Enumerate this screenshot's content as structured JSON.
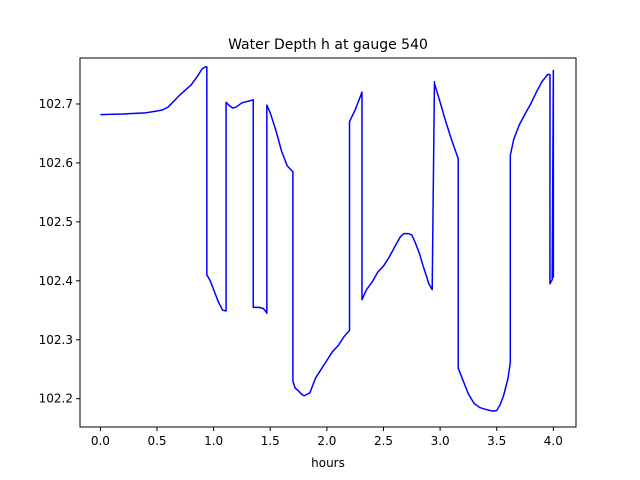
{
  "chart_data": {
    "type": "line",
    "title": "Water Depth h at gauge 540",
    "xlabel": "hours",
    "ylabel": "",
    "xlim": [
      -0.18,
      4.2
    ],
    "ylim": [
      102.152,
      102.778
    ],
    "xticks": [
      0.0,
      0.5,
      1.0,
      1.5,
      2.0,
      2.5,
      3.0,
      3.5,
      4.0
    ],
    "xtick_labels": [
      "0.0",
      "0.5",
      "1.0",
      "1.5",
      "2.0",
      "2.5",
      "3.0",
      "3.5",
      "4.0"
    ],
    "yticks": [
      102.2,
      102.3,
      102.4,
      102.5,
      102.6,
      102.7
    ],
    "ytick_labels": [
      "102.2",
      "102.3",
      "102.4",
      "102.5",
      "102.6",
      "102.7"
    ],
    "grid": false,
    "legend": "none",
    "series": [
      {
        "color": "#0000ff",
        "x": [
          0.0,
          0.2,
          0.4,
          0.5,
          0.55,
          0.6,
          0.65,
          0.7,
          0.8,
          0.85,
          0.9,
          0.93,
          0.94,
          0.94,
          0.97,
          1.0,
          1.04,
          1.08,
          1.11,
          1.11,
          1.14,
          1.17,
          1.2,
          1.25,
          1.35,
          1.35,
          1.4,
          1.44,
          1.46,
          1.47,
          1.47,
          1.5,
          1.55,
          1.6,
          1.65,
          1.7,
          1.7,
          1.72,
          1.74,
          1.78,
          1.8,
          1.85,
          1.9,
          2.0,
          2.05,
          2.1,
          2.15,
          2.2,
          2.2,
          2.25,
          2.31,
          2.31,
          2.35,
          2.4,
          2.45,
          2.5,
          2.55,
          2.6,
          2.65,
          2.68,
          2.7,
          2.72,
          2.75,
          2.78,
          2.8,
          2.82,
          2.85,
          2.88,
          2.9,
          2.93,
          2.95,
          2.95,
          3.0,
          3.05,
          3.1,
          3.16,
          3.16,
          3.2,
          3.25,
          3.3,
          3.35,
          3.4,
          3.44,
          3.47,
          3.5,
          3.53,
          3.56,
          3.6,
          3.62,
          3.62,
          3.65,
          3.7,
          3.75,
          3.8,
          3.85,
          3.9,
          3.95,
          3.97,
          3.97,
          3.99,
          4.0,
          4.0,
          4.0
        ],
        "y": [
          102.682,
          102.683,
          102.685,
          102.688,
          102.69,
          102.695,
          102.705,
          102.715,
          102.732,
          102.745,
          102.76,
          102.763,
          102.763,
          102.41,
          102.4,
          102.385,
          102.365,
          102.35,
          102.349,
          102.703,
          102.697,
          102.693,
          102.695,
          102.702,
          102.707,
          102.355,
          102.355,
          102.353,
          102.348,
          102.345,
          102.698,
          102.685,
          102.655,
          102.62,
          102.595,
          102.585,
          102.23,
          102.218,
          102.215,
          102.207,
          102.205,
          102.21,
          102.235,
          102.265,
          102.28,
          102.29,
          102.305,
          102.316,
          102.67,
          102.69,
          102.72,
          102.368,
          102.385,
          102.398,
          102.415,
          102.425,
          102.44,
          102.458,
          102.475,
          102.48,
          102.48,
          102.48,
          102.478,
          102.465,
          102.455,
          102.445,
          102.425,
          102.408,
          102.395,
          102.385,
          102.738,
          102.735,
          102.703,
          102.67,
          102.64,
          102.607,
          102.252,
          102.232,
          102.208,
          102.192,
          102.185,
          102.182,
          102.18,
          102.179,
          102.18,
          102.19,
          102.205,
          102.235,
          102.262,
          102.613,
          102.64,
          102.665,
          102.683,
          102.7,
          102.72,
          102.738,
          102.75,
          102.75,
          102.395,
          102.402,
          102.757,
          102.405,
          102.405
        ]
      }
    ]
  }
}
